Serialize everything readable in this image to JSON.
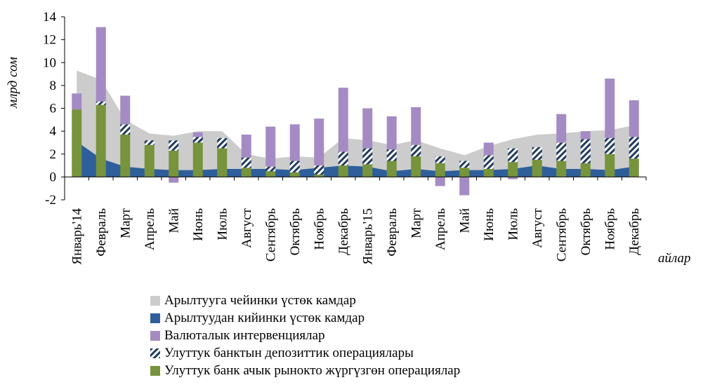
{
  "chart_data": {
    "type": "bar",
    "ylabel": "млрд сом",
    "xlabel": "айлар",
    "ylim": [
      -2,
      14
    ],
    "yticks": [
      -2,
      0,
      2,
      4,
      6,
      8,
      10,
      12,
      14
    ],
    "categories": [
      "Январь'14",
      "Февраль",
      "Март",
      "Апрель",
      "Май",
      "Июнь",
      "Июль",
      "Август",
      "Сентябрь",
      "Октябрь",
      "Ноябрь",
      "Декабрь",
      "Январь'15",
      "Февраль",
      "Март",
      "Апрель",
      "Май",
      "Июнь",
      "Июль",
      "Август",
      "Сентябрь",
      "Октябрь",
      "Ноябрь",
      "Декабрь"
    ],
    "legend_position": "bottom",
    "series": [
      {
        "name": "Арылтуугa чейинки үстөк камдар",
        "kind": "area",
        "color": "#cccccc",
        "values": [
          9.3,
          8.5,
          5.0,
          3.8,
          3.6,
          4.0,
          4.0,
          2.0,
          1.6,
          1.8,
          1.7,
          3.4,
          3.2,
          2.8,
          3.2,
          2.5,
          1.9,
          2.7,
          3.3,
          3.7,
          3.8,
          4.0,
          4.1,
          4.5
        ]
      },
      {
        "name": "Арылтуудан кийинки үстөк камдар",
        "kind": "area",
        "color": "#2e5f9a",
        "values": [
          3.1,
          1.6,
          0.9,
          0.7,
          0.6,
          0.6,
          0.7,
          0.7,
          0.7,
          0.6,
          0.8,
          1.0,
          0.9,
          0.5,
          0.7,
          0.5,
          0.6,
          0.6,
          0.7,
          1.0,
          0.7,
          0.7,
          0.6,
          0.9
        ]
      },
      {
        "name": "Валюталык интервенциялар",
        "kind": "bar",
        "color": "#a58bc3",
        "values": [
          1.4,
          6.5,
          2.5,
          0.0,
          -0.5,
          0.4,
          0.0,
          2.0,
          3.5,
          3.2,
          4.1,
          5.6,
          3.5,
          2.9,
          3.3,
          -0.8,
          -1.6,
          1.1,
          -0.2,
          0.0,
          2.5,
          0.7,
          5.2,
          3.2
        ]
      },
      {
        "name": "Улуттук банктын депозиттик операциялары",
        "kind": "bar",
        "pattern": "diagonal-stripes",
        "color": "#1f3b5f",
        "values": [
          0.0,
          0.3,
          0.9,
          0.4,
          0.9,
          0.5,
          0.9,
          0.9,
          0.4,
          1.0,
          0.8,
          1.2,
          1.4,
          1.0,
          1.0,
          0.6,
          0.6,
          1.2,
          1.2,
          1.1,
          1.6,
          2.1,
          1.4,
          1.9
        ]
      },
      {
        "name": "Улуттук банк ачык рынокто жүргүзгөн операциялар",
        "kind": "bar",
        "color": "#77933c",
        "values": [
          5.9,
          6.3,
          3.7,
          2.8,
          2.3,
          3.0,
          2.5,
          0.8,
          0.5,
          0.4,
          0.2,
          1.0,
          1.1,
          1.4,
          1.8,
          1.2,
          0.8,
          0.7,
          1.3,
          1.5,
          1.4,
          1.2,
          2.0,
          1.6
        ]
      }
    ]
  }
}
